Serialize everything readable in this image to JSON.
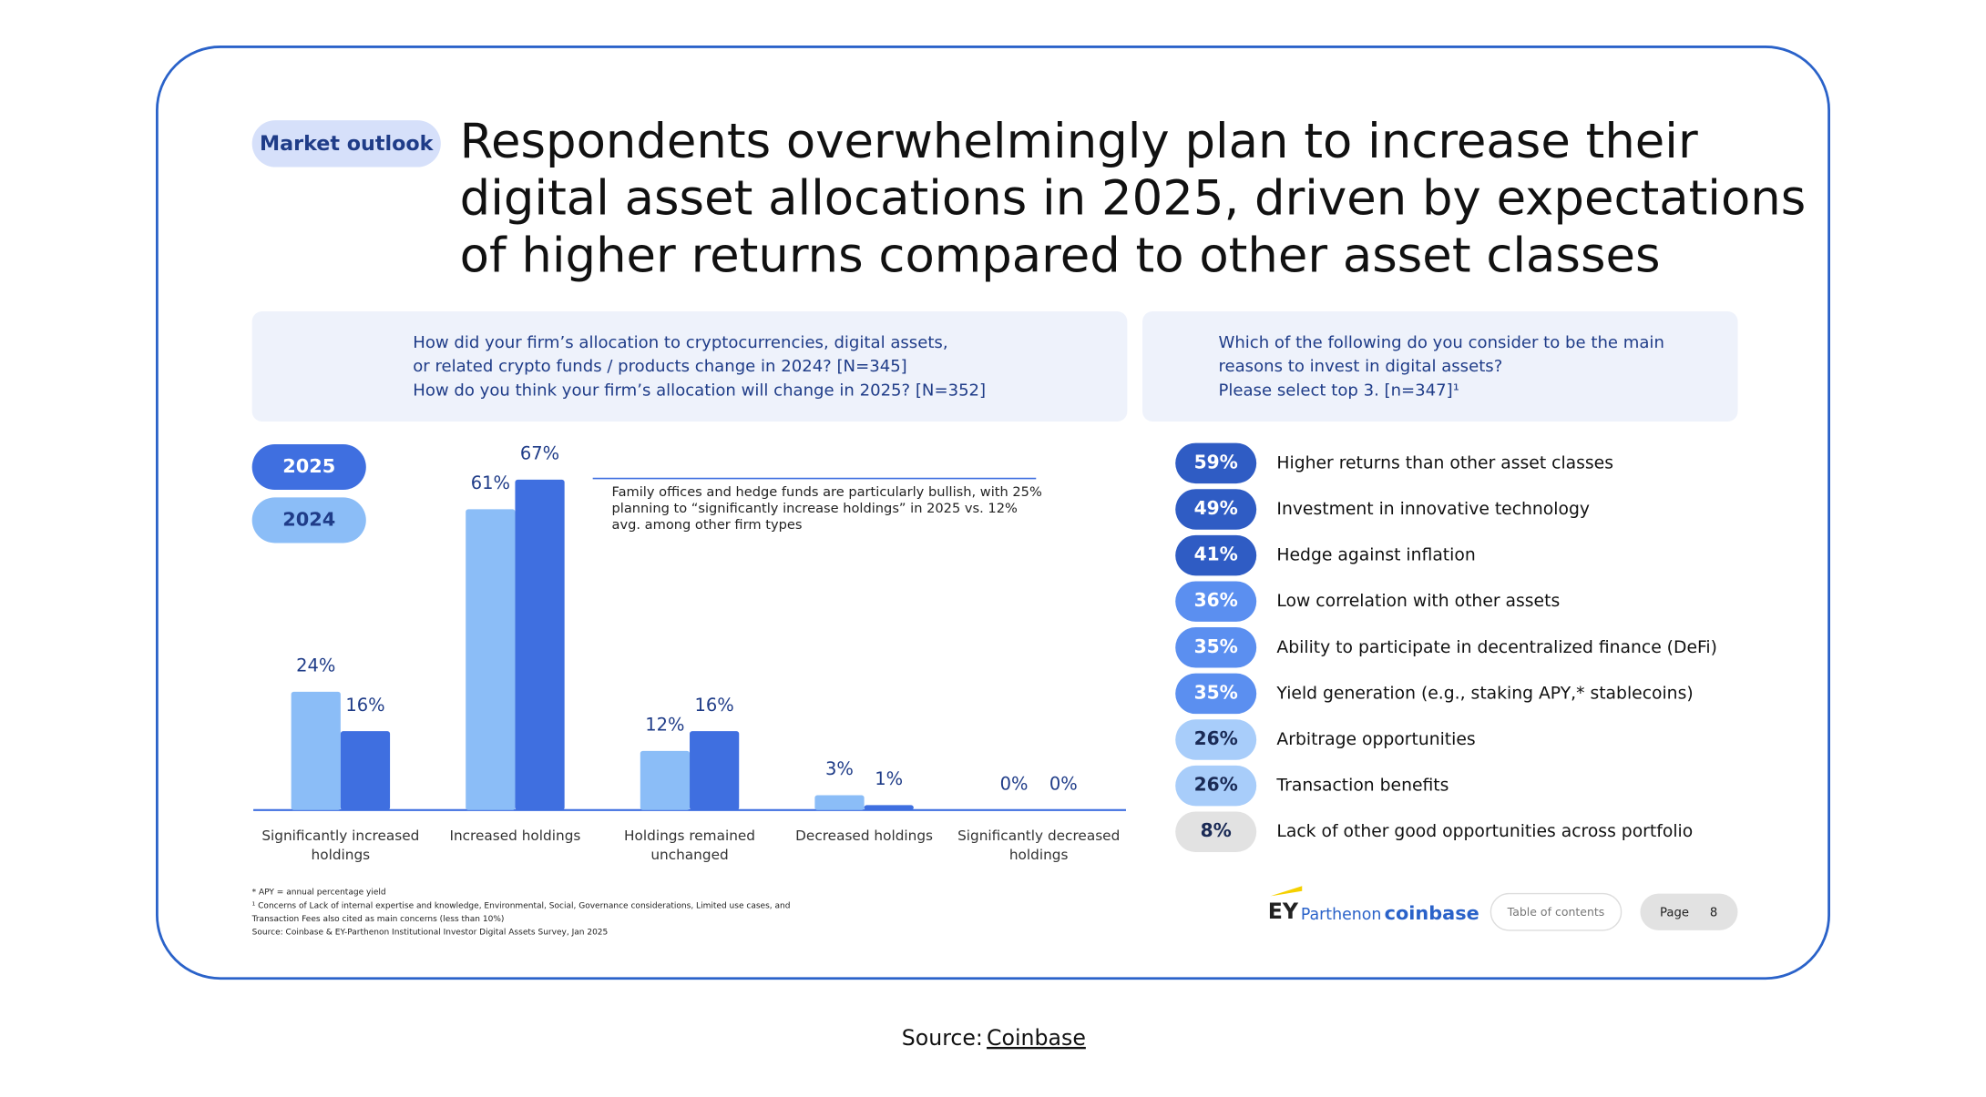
{
  "header": {
    "tag": "Market outlook",
    "title": [
      "Respondents overwhelmingly plan to increase their",
      "digital asset allocations in 2025, driven by expectations",
      "of higher returns compared to other asset classes"
    ]
  },
  "chart_data": [
    {
      "type": "bar",
      "question": [
        "How did your firm’s allocation to cryptocurrencies, digital assets,",
        "or related crypto funds / products change in 2024? [N=345]",
        "How do you think your firm’s allocation will change in 2025? [N=352]"
      ],
      "categories": [
        "Significantly increased holdings",
        "Increased holdings",
        "Holdings remained unchanged",
        "Decreased holdings",
        "Significantly decreased holdings"
      ],
      "series": [
        {
          "name": "2024",
          "color": "#8bbdf7",
          "values": [
            24,
            61,
            12,
            3,
            0
          ],
          "value_labels": [
            "24%",
            "61%",
            "12%",
            "3%",
            "0%"
          ]
        },
        {
          "name": "2025",
          "color": "#3f6fe0",
          "values": [
            16,
            67,
            16,
            1,
            0
          ],
          "value_labels": [
            "16%",
            "67%",
            "16%",
            "1%",
            "0%"
          ]
        }
      ],
      "annotation": "Family offices and hedge funds are particularly bullish, with 25% planning to “significantly increase holdings” in 2025 vs. 12% avg. among other firm types"
    },
    {
      "type": "pill-list",
      "question": [
        "Which of the following do you consider to be the main",
        "reasons to invest in digital assets?",
        "Please select top 3. [n=347]¹"
      ],
      "categories": [
        "Higher returns than other asset classes",
        "Investment in innovative technology",
        "Hedge against inflation",
        "Low correlation with other assets",
        "Ability to participate in decentralized finance (DeFi)",
        "Yield generation (e.g., staking APY,* stablecoins)",
        "Arbitrage opportunities",
        "Transaction benefits",
        "Lack of other good opportunities across portfolio"
      ],
      "values": [
        59,
        49,
        41,
        36,
        35,
        35,
        26,
        26,
        8
      ],
      "value_labels": [
        "59%",
        "49%",
        "41%",
        "36%",
        "35%",
        "35%",
        "26%",
        "26%",
        "8%"
      ],
      "colors": [
        "#2f5cc4",
        "#2f5cc4",
        "#2f5cc4",
        "#5b8ff0",
        "#5b8ff0",
        "#5b8ff0",
        "#a8cdfa",
        "#a8cdfa",
        "#e2e2e2"
      ]
    }
  ],
  "footnotes": [
    "* APY = annual percentage yield",
    "¹ Concerns of Lack of internal expertise and knowledge, Environmental, Social, Governance considerations, Limited use cases, and",
    "Transaction Fees also cited as main concerns (less than 10%)",
    "Source: Coinbase & EY-Parthenon Institutional Investor Digital Assets Survey, Jan 2025"
  ],
  "footer": {
    "logo_ey": "EY",
    "logo_parthenon": "Parthenon",
    "logo_coinbase": "coinbase",
    "toc": "Table of contents",
    "page_label": "Page",
    "page_number": "8"
  },
  "source": {
    "label": "Source:",
    "link": "Coinbase"
  }
}
